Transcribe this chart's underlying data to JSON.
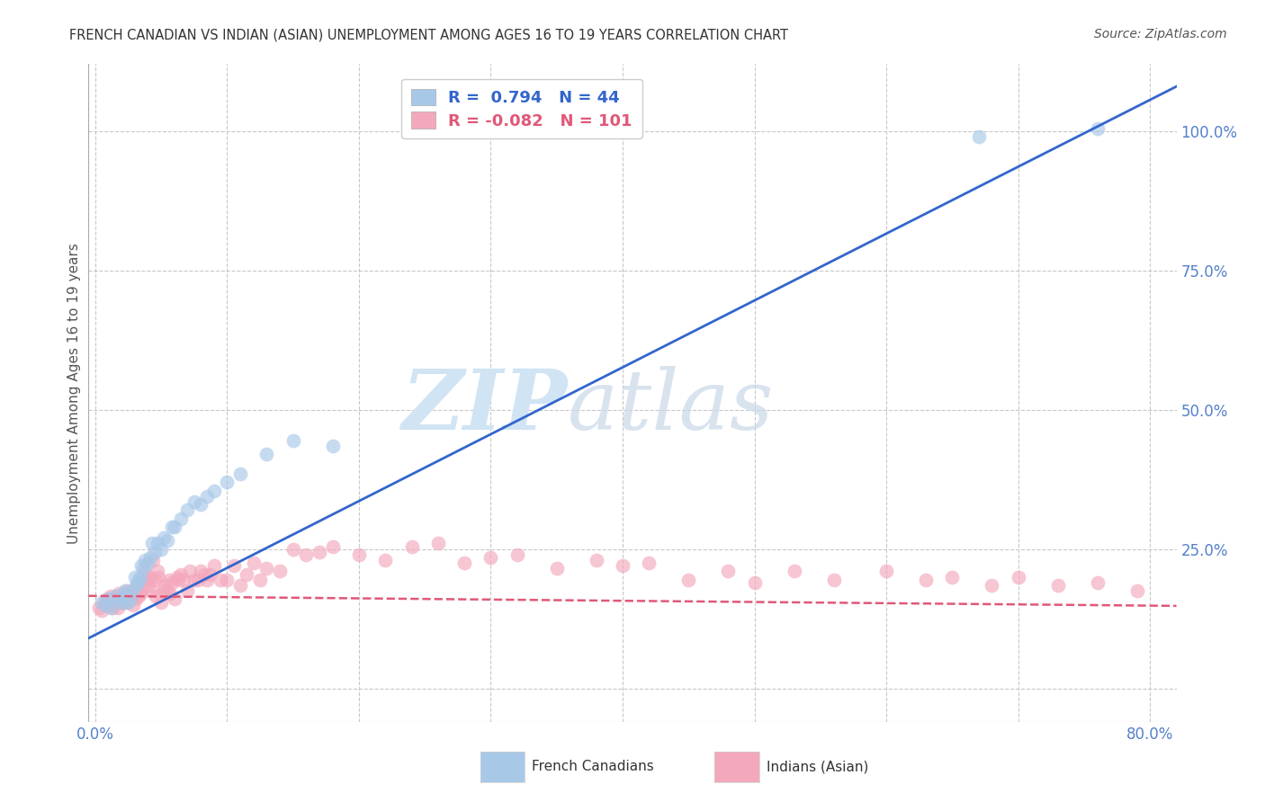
{
  "title": "FRENCH CANADIAN VS INDIAN (ASIAN) UNEMPLOYMENT AMONG AGES 16 TO 19 YEARS CORRELATION CHART",
  "source": "Source: ZipAtlas.com",
  "ylabel": "Unemployment Among Ages 16 to 19 years",
  "xlim": [
    -0.005,
    0.82
  ],
  "ylim": [
    -0.06,
    1.12
  ],
  "french_R": 0.794,
  "french_N": 44,
  "indian_R": -0.082,
  "indian_N": 101,
  "french_color": "#A8C8E8",
  "indian_color": "#F4A8BC",
  "french_line_color": "#3366CC",
  "indian_line_color": "#E05878",
  "watermark_color": "#D0E4F4",
  "background_color": "#ffffff",
  "grid_color": "#c8c8c8",
  "ytick_color": "#5580CC",
  "xtick_color": "#5580CC",
  "french_x": [
    0.005,
    0.008,
    0.01,
    0.012,
    0.015,
    0.018,
    0.02,
    0.021,
    0.022,
    0.023,
    0.025,
    0.027,
    0.028,
    0.03,
    0.031,
    0.032,
    0.033,
    0.034,
    0.035,
    0.036,
    0.038,
    0.04,
    0.042,
    0.043,
    0.045,
    0.047,
    0.05,
    0.052,
    0.055,
    0.058,
    0.06,
    0.065,
    0.07,
    0.075,
    0.08,
    0.085,
    0.09,
    0.1,
    0.11,
    0.13,
    0.15,
    0.18,
    0.67,
    0.76
  ],
  "french_y": [
    0.155,
    0.15,
    0.16,
    0.145,
    0.165,
    0.155,
    0.16,
    0.17,
    0.155,
    0.175,
    0.155,
    0.16,
    0.175,
    0.2,
    0.185,
    0.19,
    0.195,
    0.2,
    0.22,
    0.215,
    0.23,
    0.225,
    0.235,
    0.26,
    0.245,
    0.26,
    0.25,
    0.27,
    0.265,
    0.29,
    0.29,
    0.305,
    0.32,
    0.335,
    0.33,
    0.345,
    0.355,
    0.37,
    0.385,
    0.42,
    0.445,
    0.435,
    0.99,
    1.005
  ],
  "indian_x": [
    0.003,
    0.005,
    0.007,
    0.008,
    0.009,
    0.01,
    0.011,
    0.012,
    0.013,
    0.014,
    0.015,
    0.016,
    0.017,
    0.018,
    0.019,
    0.02,
    0.021,
    0.022,
    0.023,
    0.024,
    0.025,
    0.026,
    0.027,
    0.028,
    0.029,
    0.03,
    0.031,
    0.032,
    0.033,
    0.034,
    0.035,
    0.036,
    0.037,
    0.038,
    0.04,
    0.041,
    0.042,
    0.043,
    0.044,
    0.045,
    0.046,
    0.047,
    0.048,
    0.05,
    0.052,
    0.053,
    0.055,
    0.056,
    0.057,
    0.058,
    0.06,
    0.062,
    0.063,
    0.065,
    0.067,
    0.07,
    0.072,
    0.075,
    0.078,
    0.08,
    0.083,
    0.085,
    0.087,
    0.09,
    0.095,
    0.1,
    0.105,
    0.11,
    0.115,
    0.12,
    0.125,
    0.13,
    0.14,
    0.15,
    0.16,
    0.17,
    0.18,
    0.2,
    0.22,
    0.24,
    0.26,
    0.28,
    0.3,
    0.32,
    0.35,
    0.38,
    0.4,
    0.42,
    0.45,
    0.48,
    0.5,
    0.53,
    0.56,
    0.6,
    0.63,
    0.65,
    0.68,
    0.7,
    0.73,
    0.76,
    0.79
  ],
  "indian_y": [
    0.145,
    0.14,
    0.155,
    0.15,
    0.16,
    0.155,
    0.15,
    0.165,
    0.145,
    0.16,
    0.155,
    0.165,
    0.145,
    0.17,
    0.155,
    0.165,
    0.155,
    0.17,
    0.16,
    0.175,
    0.155,
    0.17,
    0.165,
    0.175,
    0.15,
    0.165,
    0.16,
    0.175,
    0.165,
    0.17,
    0.175,
    0.195,
    0.2,
    0.21,
    0.185,
    0.195,
    0.2,
    0.175,
    0.23,
    0.195,
    0.165,
    0.21,
    0.2,
    0.155,
    0.175,
    0.185,
    0.175,
    0.195,
    0.17,
    0.19,
    0.16,
    0.2,
    0.195,
    0.205,
    0.195,
    0.175,
    0.21,
    0.195,
    0.195,
    0.21,
    0.205,
    0.195,
    0.205,
    0.22,
    0.195,
    0.195,
    0.22,
    0.185,
    0.205,
    0.225,
    0.195,
    0.215,
    0.21,
    0.25,
    0.24,
    0.245,
    0.255,
    0.24,
    0.23,
    0.255,
    0.26,
    0.225,
    0.235,
    0.24,
    0.215,
    0.23,
    0.22,
    0.225,
    0.195,
    0.21,
    0.19,
    0.21,
    0.195,
    0.21,
    0.195,
    0.2,
    0.185,
    0.2,
    0.185,
    0.19,
    0.175
  ]
}
